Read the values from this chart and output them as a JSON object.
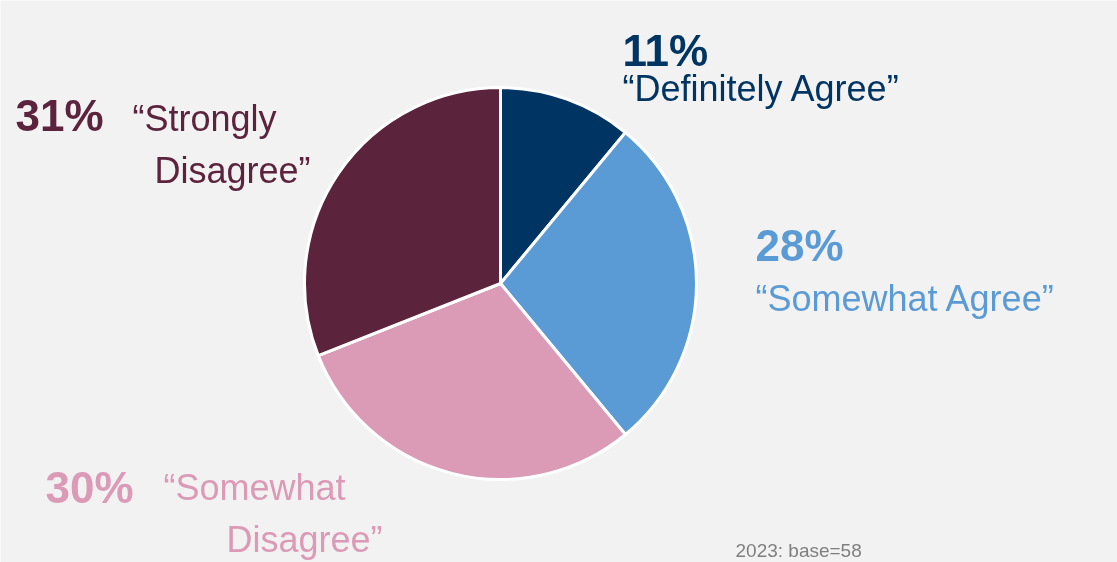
{
  "chart_data": {
    "type": "pie",
    "categories": [
      "“Definitely Agree”",
      "“Somewhat Agree”",
      "“Somewhat Disagree”",
      "“Strongly Disagree”"
    ],
    "values": [
      11,
      28,
      30,
      31
    ],
    "value_labels": [
      "11%",
      "28%",
      "30%",
      "31%"
    ],
    "colors": [
      "#003462",
      "#5b9bd5",
      "#db9ab5",
      "#5c233c"
    ],
    "annotations": [
      "2023: base=58"
    ]
  }
}
